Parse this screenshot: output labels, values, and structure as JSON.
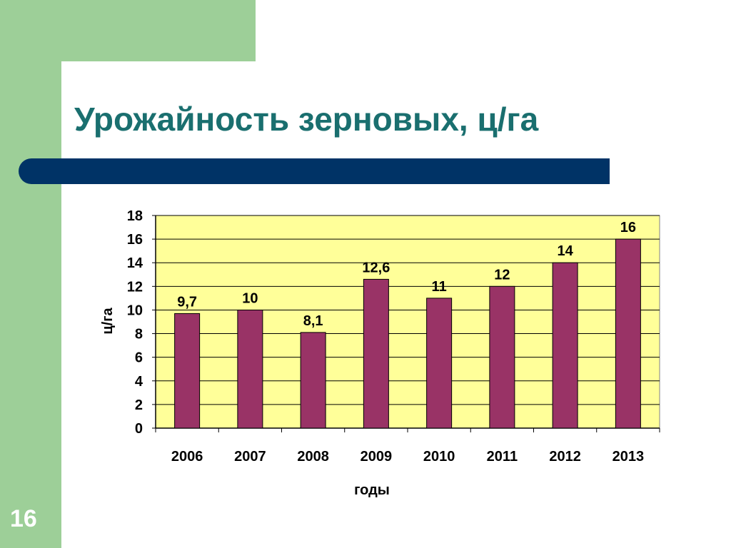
{
  "slide": {
    "title": "Урожайность зерновых, ц/га",
    "number": "16"
  },
  "colors": {
    "background_green": "#9dcf98",
    "title_text": "#1a6f6f",
    "title_bar": "#003366",
    "plot_area": "#ffff99",
    "bar_fill": "#993366"
  },
  "chart_data": {
    "type": "bar",
    "title": "",
    "xlabel": "годы",
    "ylabel": "ц/га",
    "categories": [
      "2006",
      "2007",
      "2008",
      "2009",
      "2010",
      "2011",
      "2012",
      "2013"
    ],
    "values": [
      9.7,
      10,
      8.1,
      12.6,
      11,
      12,
      14,
      16
    ],
    "data_labels": [
      "9,7",
      "10",
      "8,1",
      "12,6",
      "11",
      "12",
      "14",
      "16"
    ],
    "ylim": [
      0,
      18
    ],
    "yticks": [
      0,
      2,
      4,
      6,
      8,
      10,
      12,
      14,
      16,
      18
    ],
    "grid": true,
    "legend": false
  }
}
